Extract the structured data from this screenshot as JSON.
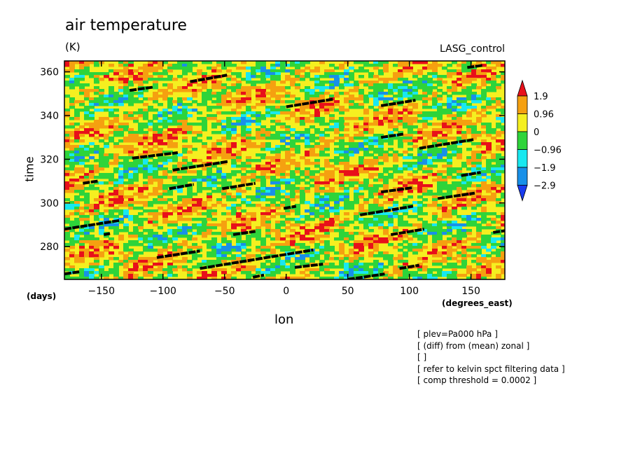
{
  "chart_data": {
    "type": "heatmap",
    "title": "air temperature",
    "units": "(K)",
    "model_label": "LASG_control",
    "xlabel": "lon",
    "ylabel": "time",
    "x_unit_left": "(days)",
    "x_unit_right": "(degrees_east)",
    "xlim": [
      -180,
      177.5
    ],
    "ylim": [
      265,
      365
    ],
    "x_ticks": [
      -150,
      -100,
      -50,
      0,
      50,
      100,
      150
    ],
    "y_ticks": [
      280,
      300,
      320,
      340,
      360
    ],
    "colorbar": {
      "levels": [
        "1.9",
        "0.96",
        "0",
        "−0.96",
        "−1.9",
        "−2.9"
      ],
      "colors": [
        "#e8101a",
        "#f5a010",
        "#f5ef20",
        "#2ed43a",
        "#18e8f0",
        "#1890e8",
        "#1a3cf0"
      ]
    },
    "kelvin_wave_tracks": [
      {
        "x": [
          -180,
          -135
        ],
        "y": [
          288,
          292
        ]
      },
      {
        "x": [
          -127,
          -108
        ],
        "y": [
          351.5,
          353
        ]
      },
      {
        "x": [
          -78,
          -48
        ],
        "y": [
          355.5,
          358.5
        ]
      },
      {
        "x": [
          -125,
          -88
        ],
        "y": [
          320.5,
          323
        ]
      },
      {
        "x": [
          -92,
          -47
        ],
        "y": [
          315,
          319
        ]
      },
      {
        "x": [
          -95,
          -75
        ],
        "y": [
          306.5,
          308.5
        ]
      },
      {
        "x": [
          -52,
          -25
        ],
        "y": [
          306.5,
          309
        ]
      },
      {
        "x": [
          -165,
          -153
        ],
        "y": [
          309,
          310
        ]
      },
      {
        "x": [
          -148,
          -143
        ],
        "y": [
          285.5,
          286
        ]
      },
      {
        "x": [
          -105,
          -70
        ],
        "y": [
          275,
          278
        ]
      },
      {
        "x": [
          -70,
          22
        ],
        "y": [
          270,
          278.5
        ]
      },
      {
        "x": [
          -43,
          -25
        ],
        "y": [
          285.5,
          287
        ]
      },
      {
        "x": [
          -27,
          -18
        ],
        "y": [
          266,
          267
        ]
      },
      {
        "x": [
          -2,
          8
        ],
        "y": [
          297.5,
          298.5
        ]
      },
      {
        "x": [
          0,
          38
        ],
        "y": [
          344,
          347.5
        ]
      },
      {
        "x": [
          7,
          30
        ],
        "y": [
          270.5,
          272
        ]
      },
      {
        "x": [
          50,
          80
        ],
        "y": [
          265,
          267.5
        ]
      },
      {
        "x": [
          60,
          103
        ],
        "y": [
          294.5,
          298.5
        ]
      },
      {
        "x": [
          77,
          105
        ],
        "y": [
          344.5,
          347
        ]
      },
      {
        "x": [
          77,
          95
        ],
        "y": [
          330,
          331.5
        ]
      },
      {
        "x": [
          77,
          103
        ],
        "y": [
          305,
          307
        ]
      },
      {
        "x": [
          85,
          112
        ],
        "y": [
          285.5,
          288
        ]
      },
      {
        "x": [
          92,
          108
        ],
        "y": [
          270,
          271.5
        ]
      },
      {
        "x": [
          108,
          152
        ],
        "y": [
          325,
          329
        ]
      },
      {
        "x": [
          123,
          153
        ],
        "y": [
          302,
          304.5
        ]
      },
      {
        "x": [
          142,
          158
        ],
        "y": [
          312.5,
          314
        ]
      },
      {
        "x": [
          147,
          160
        ],
        "y": [
          362,
          363
        ]
      },
      {
        "x": [
          168,
          180
        ],
        "y": [
          286.5,
          287.5
        ]
      },
      {
        "x": [
          -180,
          -168
        ],
        "y": [
          267.5,
          268.5
        ]
      }
    ]
  },
  "meta_lines": [
    "[ plev=Pa000 hPa ]",
    "[ (diff) from (mean) zonal ]",
    "[  ]",
    "[ refer to kelvin spct filtering data ]",
    "[ comp threshold = 0.0002 ]"
  ]
}
